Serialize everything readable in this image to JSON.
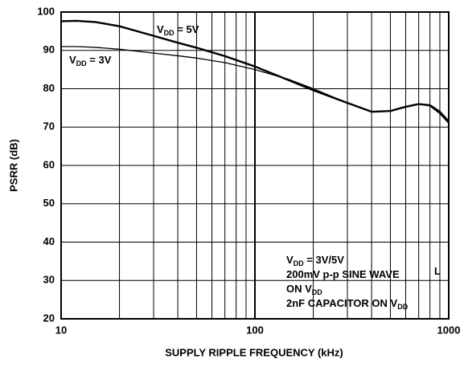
{
  "chart_data": {
    "type": "line",
    "xlabel": "SUPPLY RIPPLE FREQUENCY (kHz)",
    "ylabel": "PSRR (dB)",
    "xscale": "log",
    "xlim": [
      10,
      1000
    ],
    "xticks": [
      10,
      100,
      1000
    ],
    "xgrid_minor": [
      20,
      30,
      40,
      50,
      60,
      70,
      80,
      90,
      200,
      300,
      400,
      500,
      600,
      700,
      800,
      900
    ],
    "ylim": [
      20,
      100
    ],
    "yticks": [
      20,
      30,
      40,
      50,
      60,
      70,
      80,
      90,
      100
    ],
    "grid": true,
    "x": [
      10,
      12,
      15,
      20,
      30,
      40,
      50,
      70,
      100,
      150,
      200,
      300,
      400,
      500,
      600,
      700,
      800,
      900,
      1000
    ],
    "series": [
      {
        "label": [
          {
            "t": "V"
          },
          {
            "t": "DD",
            "sub": true
          },
          {
            "t": " = 5V"
          }
        ],
        "color": "#000000",
        "width": 2.4,
        "values": [
          97.6,
          97.7,
          97.4,
          96.3,
          93.8,
          92,
          90.7,
          88.5,
          85.8,
          82.2,
          79.6,
          76.3,
          74,
          74.2,
          75.3,
          76,
          75.7,
          74,
          71.5
        ]
      },
      {
        "label": [
          {
            "t": "V"
          },
          {
            "t": "DD",
            "sub": true
          },
          {
            "t": " = 3V"
          }
        ],
        "color": "#000000",
        "width": 1.3,
        "values": [
          91,
          91,
          90.8,
          90.3,
          89.3,
          88.6,
          88,
          86.8,
          85,
          82.4,
          80,
          76.3,
          74,
          74.2,
          75.3,
          76,
          75.5,
          73.5,
          71
        ]
      }
    ],
    "annotations": [
      [
        {
          "t": "V"
        },
        {
          "t": "DD",
          "sub": true
        },
        {
          "t": " = 3V/5V"
        }
      ],
      [
        {
          "t": "200mV p-p SINE WAVE"
        }
      ],
      [
        {
          "t": "ON V"
        },
        {
          "t": "DD",
          "sub": true
        }
      ],
      [
        {
          "t": "2nF CAPACITOR ON V"
        },
        {
          "t": "DD",
          "sub": true
        }
      ],
      [
        {
          "t": "L"
        }
      ]
    ]
  }
}
